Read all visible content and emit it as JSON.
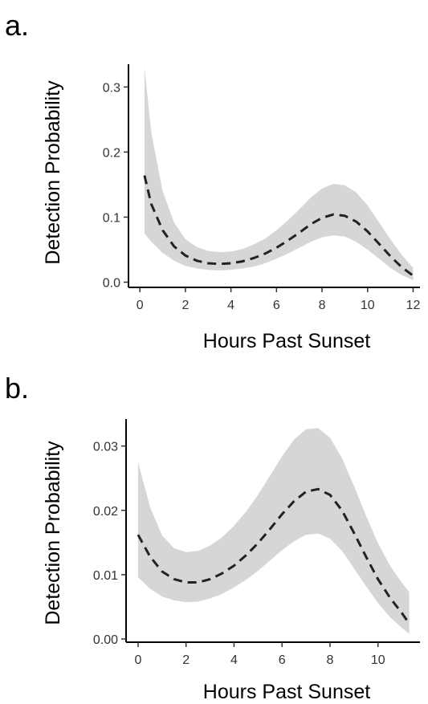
{
  "chart_data": [
    {
      "panel_label": "a.",
      "type": "line",
      "xlabel": "Hours Past Sunset",
      "ylabel": "Detection Probability",
      "xlim": [
        -0.5,
        12.3
      ],
      "ylim": [
        -0.008,
        0.335
      ],
      "xticks": [
        0,
        2,
        4,
        6,
        8,
        10,
        12
      ],
      "xtick_labels": [
        "0",
        "2",
        "4",
        "6",
        "8",
        "10",
        "12"
      ],
      "yticks": [
        0.0,
        0.1,
        0.2,
        0.3
      ],
      "ytick_labels": [
        "0.0",
        "0.1",
        "0.2",
        "0.3"
      ],
      "grid": false,
      "x": [
        0.2,
        0.5,
        1.0,
        1.5,
        2.0,
        2.5,
        3.0,
        3.5,
        4.0,
        4.5,
        5.0,
        5.5,
        6.0,
        6.5,
        7.0,
        7.5,
        8.0,
        8.5,
        9.0,
        9.5,
        10.0,
        10.5,
        11.0,
        11.5,
        12.0
      ],
      "series": [
        {
          "y": [
            0.164,
            0.12,
            0.08,
            0.055,
            0.041,
            0.033,
            0.029,
            0.028,
            0.029,
            0.032,
            0.037,
            0.044,
            0.053,
            0.064,
            0.076,
            0.089,
            0.099,
            0.104,
            0.102,
            0.093,
            0.078,
            0.059,
            0.04,
            0.023,
            0.01
          ],
          "lower": [
            0.075,
            0.062,
            0.045,
            0.033,
            0.025,
            0.021,
            0.019,
            0.018,
            0.019,
            0.021,
            0.024,
            0.029,
            0.036,
            0.044,
            0.053,
            0.062,
            0.069,
            0.072,
            0.07,
            0.062,
            0.05,
            0.036,
            0.022,
            0.011,
            0.003
          ],
          "upper": [
            0.33,
            0.23,
            0.14,
            0.092,
            0.066,
            0.054,
            0.048,
            0.046,
            0.047,
            0.051,
            0.058,
            0.067,
            0.08,
            0.095,
            0.112,
            0.13,
            0.144,
            0.151,
            0.149,
            0.138,
            0.118,
            0.092,
            0.066,
            0.042,
            0.022
          ]
        }
      ]
    },
    {
      "panel_label": "b.",
      "type": "line",
      "xlabel": "Hours Past Sunset",
      "ylabel": "Detection Probability",
      "xlim": [
        -0.5,
        11.75
      ],
      "ylim": [
        -0.0005,
        0.0342
      ],
      "xticks": [
        0,
        2,
        4,
        6,
        8,
        10
      ],
      "xtick_labels": [
        "0",
        "2",
        "4",
        "6",
        "8",
        "10"
      ],
      "yticks": [
        0.0,
        0.01,
        0.02,
        0.03
      ],
      "ytick_labels": [
        "0.00",
        "0.01",
        "0.02",
        "0.03"
      ],
      "grid": false,
      "x": [
        0.0,
        0.5,
        1.0,
        1.5,
        2.0,
        2.5,
        3.0,
        3.5,
        4.0,
        4.5,
        5.0,
        5.5,
        6.0,
        6.5,
        7.0,
        7.5,
        8.0,
        8.5,
        9.0,
        9.5,
        10.0,
        10.5,
        11.0,
        11.3
      ],
      "series": [
        {
          "y": [
            0.0162,
            0.0128,
            0.0105,
            0.0093,
            0.0088,
            0.0088,
            0.0093,
            0.0102,
            0.0114,
            0.013,
            0.0149,
            0.0171,
            0.0194,
            0.0214,
            0.0229,
            0.0233,
            0.0224,
            0.02,
            0.0165,
            0.0128,
            0.0093,
            0.0064,
            0.004,
            0.0024
          ],
          "lower": [
            0.0096,
            0.0078,
            0.0066,
            0.006,
            0.0057,
            0.0058,
            0.0063,
            0.007,
            0.008,
            0.0092,
            0.0106,
            0.0122,
            0.0138,
            0.0152,
            0.0162,
            0.0164,
            0.0156,
            0.0137,
            0.011,
            0.0082,
            0.0056,
            0.0034,
            0.0017,
            0.0008
          ],
          "upper": [
            0.0275,
            0.0205,
            0.0161,
            0.0141,
            0.0135,
            0.0137,
            0.0145,
            0.0158,
            0.0176,
            0.0198,
            0.0224,
            0.0254,
            0.0284,
            0.031,
            0.0326,
            0.0328,
            0.0313,
            0.0281,
            0.0238,
            0.0192,
            0.0149,
            0.0114,
            0.0087,
            0.0073
          ]
        }
      ]
    }
  ]
}
